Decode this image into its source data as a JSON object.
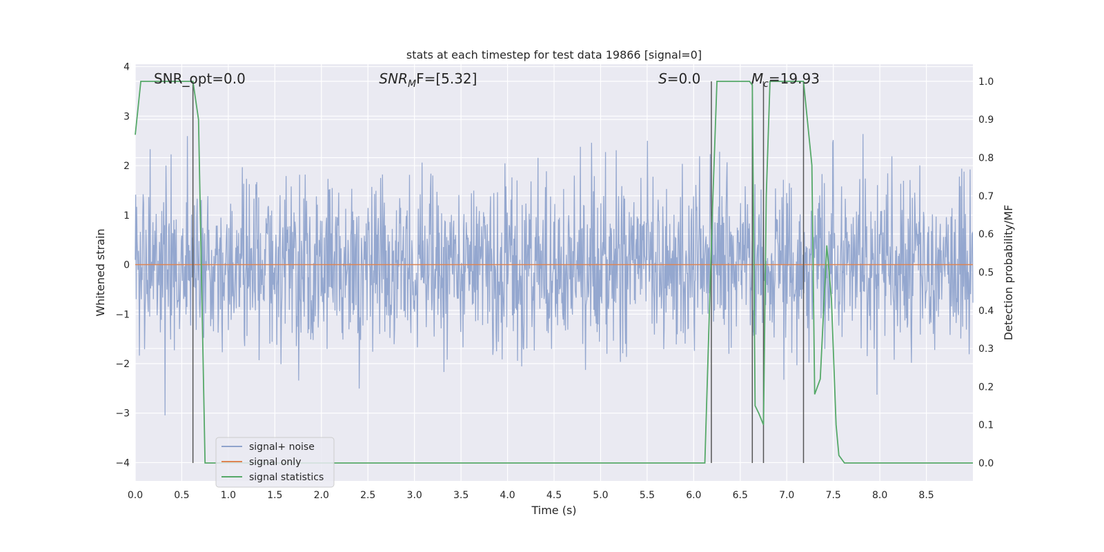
{
  "chart_data": {
    "type": "line",
    "title": "stats at each timestep for test data 19866 [signal=0]",
    "xlabel": "Time (s)",
    "ylabel_left": "Whitened strain",
    "ylabel_right": "Detection probability/MF",
    "xlim": [
      0,
      9.0
    ],
    "ylim_left": [
      -4.37,
      4.05
    ],
    "ylim_right": [
      -0.047,
      1.045
    ],
    "grid": true,
    "legend_position": "lower-left",
    "x_ticks": [
      "0.0",
      "0.5",
      "1.0",
      "1.5",
      "2.0",
      "2.5",
      "3.0",
      "3.5",
      "4.0",
      "4.5",
      "5.0",
      "5.5",
      "6.0",
      "6.5",
      "7.0",
      "7.5",
      "8.0",
      "8.5"
    ],
    "y_ticks_left": [
      "−4",
      "−3",
      "−2",
      "−1",
      "0",
      "1",
      "2",
      "3",
      "4"
    ],
    "y_ticks_right": [
      "0.0",
      "0.1",
      "0.2",
      "0.3",
      "0.4",
      "0.5",
      "0.6",
      "0.7",
      "0.8",
      "0.9",
      "1.0"
    ],
    "annotations": [
      {
        "id": "snr-opt",
        "prefix": "SNR_opt=0.0",
        "x": 0.2
      },
      {
        "id": "snr-mf",
        "prefix": "SNR",
        "sub": "M",
        "suffix": "F=[5.32]",
        "x": 2.62
      },
      {
        "id": "s-stat",
        "prefix": "S",
        "suffix": "=0.0",
        "x": 5.62
      },
      {
        "id": "mc",
        "prefix": "M",
        "sub": "c",
        "suffix": "=19.93",
        "x": 6.62
      }
    ],
    "series": [
      {
        "name": "signal+ noise",
        "color": "#8fa3cc",
        "noise_sigma": 0.85,
        "duration": 9.0
      },
      {
        "name": "signal only",
        "color": "#dd8452",
        "x": [
          0,
          9.0
        ],
        "y": [
          0,
          0
        ]
      },
      {
        "name": "signal statistics",
        "color": "#55a868",
        "axis": "right",
        "x": [
          0,
          0.06,
          0.12,
          0.2,
          0.4,
          0.6,
          0.62,
          0.68,
          0.75,
          0.85,
          1.0,
          2.0,
          3.0,
          4.0,
          5.0,
          6.0,
          6.12,
          6.2,
          6.25,
          6.5,
          6.6,
          6.63,
          6.66,
          6.7,
          6.75,
          6.78,
          6.82,
          6.9,
          7.1,
          7.18,
          7.27,
          7.3,
          7.36,
          7.43,
          7.48,
          7.53,
          7.56,
          7.62,
          8.0,
          9.0
        ],
        "y": [
          0.86,
          1.0,
          1.0,
          1.0,
          1.0,
          1.0,
          1.0,
          0.9,
          0.0,
          0.0,
          0.0,
          0.0,
          0.0,
          0.0,
          0.0,
          0.0,
          0.0,
          0.65,
          1.0,
          1.0,
          1.0,
          0.99,
          0.15,
          0.13,
          0.1,
          0.7,
          1.0,
          1.0,
          1.0,
          1.0,
          0.78,
          0.18,
          0.22,
          0.57,
          0.43,
          0.1,
          0.02,
          0.0,
          0.0,
          0.0
        ]
      }
    ],
    "vlines": [
      {
        "x": 0.62,
        "y_top": 1.0
      },
      {
        "x": 6.19,
        "y_top": 1.0
      },
      {
        "x": 6.63,
        "y_top": 1.0
      },
      {
        "x": 6.75,
        "y_top": 1.0
      },
      {
        "x": 7.18,
        "y_top": 1.0
      }
    ],
    "right_gridlines": [
      0.3,
      0.4,
      0.5,
      0.6,
      0.7,
      0.8,
      0.9,
      1.0
    ],
    "colors": {
      "plot_bg": "#eaeaf2",
      "grid": "#ffffff",
      "vline": "#555555"
    }
  }
}
